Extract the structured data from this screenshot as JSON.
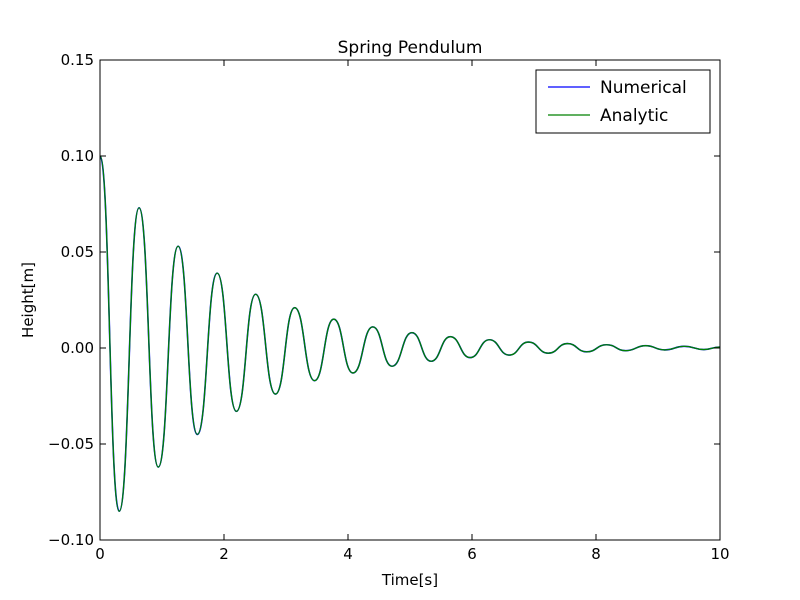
{
  "chart_data": {
    "type": "line",
    "title": "Spring Pendulum",
    "xlabel": "Time[s]",
    "ylabel": "Height[m]",
    "xlim": [
      0,
      10
    ],
    "ylim": [
      -0.1,
      0.15
    ],
    "x_ticks": [
      0,
      2,
      4,
      6,
      8,
      10
    ],
    "x_tick_labels": [
      "0",
      "2",
      "4",
      "6",
      "8",
      "10"
    ],
    "y_ticks": [
      -0.1,
      -0.05,
      0.0,
      0.05,
      0.1,
      0.15
    ],
    "y_tick_labels": [
      "−0.10",
      "−0.05",
      "0.00",
      "0.05",
      "0.10",
      "0.15"
    ],
    "grid": false,
    "legend": {
      "placement": "top-right",
      "entries": [
        "Numerical",
        "Analytic"
      ]
    },
    "series": [
      {
        "name": "Numerical",
        "color": "#0000ff",
        "x": [
          0,
          0.31,
          0.63,
          0.94,
          1.26,
          1.57,
          1.89,
          2.2,
          2.51,
          2.83,
          3.14,
          3.46,
          3.77,
          4.08,
          4.4,
          4.71,
          5.03,
          5.34,
          5.65,
          5.97,
          6.28,
          6.6,
          6.91,
          7.23,
          7.54,
          7.85,
          8.17,
          8.48,
          8.8,
          9.11,
          9.42,
          9.74,
          10
        ],
        "values": [
          0.1,
          -0.085,
          0.073,
          -0.062,
          0.053,
          -0.045,
          0.039,
          -0.033,
          0.028,
          -0.024,
          0.021,
          -0.017,
          0.015,
          -0.013,
          0.011,
          -0.0095,
          0.008,
          -0.0069,
          0.0059,
          -0.005,
          0.0043,
          -0.0037,
          0.0031,
          -0.0027,
          0.0023,
          -0.002,
          0.0017,
          -0.0014,
          0.0012,
          -0.001,
          0.0009,
          -0.0008,
          0.0005
        ]
      },
      {
        "name": "Analytic",
        "color": "#008000",
        "x": [
          0,
          0.31,
          0.63,
          0.94,
          1.26,
          1.57,
          1.89,
          2.2,
          2.51,
          2.83,
          3.14,
          3.46,
          3.77,
          4.08,
          4.4,
          4.71,
          5.03,
          5.34,
          5.65,
          5.97,
          6.28,
          6.6,
          6.91,
          7.23,
          7.54,
          7.85,
          8.17,
          8.48,
          8.8,
          9.11,
          9.42,
          9.74,
          10
        ],
        "values": [
          0.1,
          -0.085,
          0.073,
          -0.062,
          0.053,
          -0.045,
          0.039,
          -0.033,
          0.028,
          -0.024,
          0.021,
          -0.017,
          0.015,
          -0.013,
          0.011,
          -0.0095,
          0.008,
          -0.0069,
          0.0059,
          -0.005,
          0.0043,
          -0.0037,
          0.0031,
          -0.0027,
          0.0023,
          -0.002,
          0.0017,
          -0.0014,
          0.0012,
          -0.001,
          0.0009,
          -0.0008,
          0.0005
        ]
      }
    ]
  }
}
